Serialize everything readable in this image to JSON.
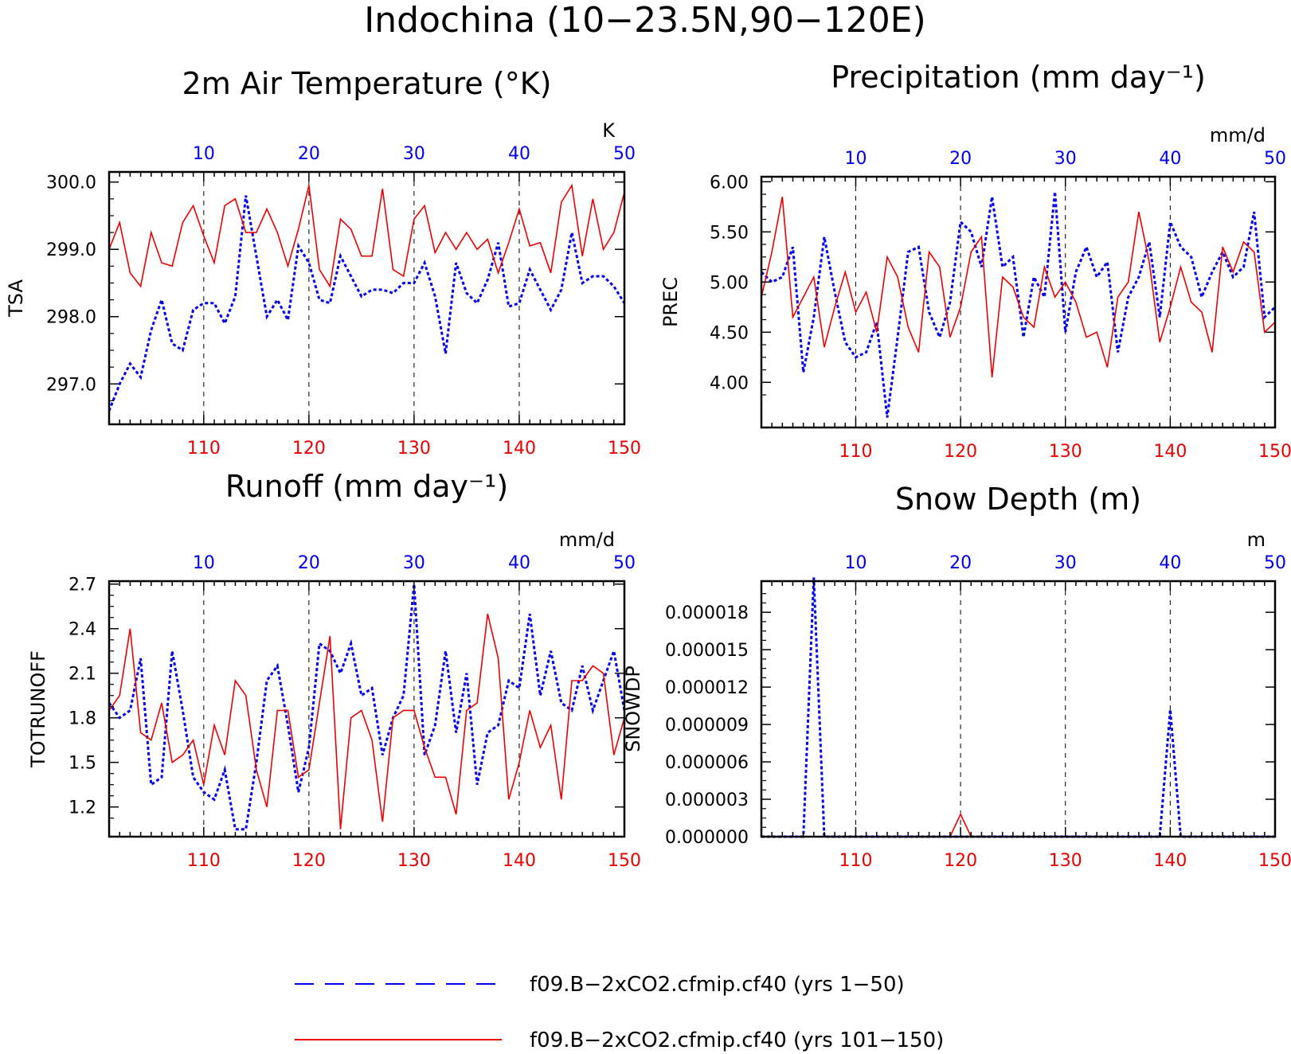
{
  "figure_title": "Indochina (10−23.5N,90−120E)",
  "colors": {
    "run_a": "#0000ee",
    "run_b": "#ee0000",
    "axis": "#000000",
    "grid": "#000000"
  },
  "legend": [
    {
      "label": "f09.B−2xCO2.cfmip.cf40 (yrs 1−50)",
      "style": "dashed",
      "color": "#0000ee"
    },
    {
      "label": "f09.B−2xCO2.cfmip.cf40 (yrs 101−150)",
      "style": "solid",
      "color": "#ee0000"
    }
  ],
  "chart_data": [
    {
      "type": "line",
      "title": "2m Air Temperature (°K)",
      "units": "K",
      "ylabel": "TSA",
      "ylim": [
        296.4,
        300.15
      ],
      "yticks": [
        297.0,
        298.0,
        299.0,
        300.0
      ],
      "ytick_labels": [
        "297.0",
        "298.0",
        "299.0",
        "300.0"
      ],
      "bottom_axis": {
        "range": [
          101,
          150
        ],
        "ticks": [
          110,
          120,
          130,
          140,
          150
        ],
        "labels": [
          "110",
          "120",
          "130",
          "140",
          "150"
        ]
      },
      "top_axis": {
        "range": [
          1,
          50
        ],
        "ticks": [
          10,
          20,
          30,
          40,
          50
        ],
        "labels": [
          "10",
          "20",
          "30",
          "40",
          "50"
        ]
      },
      "grid": "dashed vertical at ticks",
      "series": [
        {
          "x_axis": "top",
          "style": "dashed",
          "color": "#0000ee",
          "x": [
            1,
            2,
            3,
            4,
            5,
            6,
            7,
            8,
            9,
            10,
            11,
            12,
            13,
            14,
            15,
            16,
            17,
            18,
            19,
            20,
            21,
            22,
            23,
            24,
            25,
            26,
            27,
            28,
            29,
            30,
            31,
            32,
            33,
            34,
            35,
            36,
            37,
            38,
            39,
            40,
            41,
            42,
            43,
            44,
            45,
            46,
            47,
            48,
            49,
            50
          ],
          "values": [
            296.6,
            297.0,
            297.3,
            297.1,
            297.8,
            298.25,
            297.6,
            297.5,
            298.1,
            298.2,
            298.2,
            297.9,
            298.3,
            299.8,
            298.9,
            298.0,
            298.25,
            297.95,
            299.05,
            298.8,
            298.25,
            298.2,
            298.9,
            298.6,
            298.3,
            298.4,
            298.4,
            298.35,
            298.5,
            298.5,
            298.8,
            298.3,
            297.45,
            298.8,
            298.35,
            298.2,
            298.55,
            299.1,
            298.15,
            298.2,
            298.7,
            298.4,
            298.1,
            298.4,
            299.25,
            298.5,
            298.6,
            298.6,
            298.45,
            298.2
          ]
        },
        {
          "x_axis": "bottom",
          "style": "solid",
          "color": "#ee0000",
          "x": [
            101,
            102,
            103,
            104,
            105,
            106,
            107,
            108,
            109,
            110,
            111,
            112,
            113,
            114,
            115,
            116,
            117,
            118,
            119,
            120,
            121,
            122,
            123,
            124,
            125,
            126,
            127,
            128,
            129,
            130,
            131,
            132,
            133,
            134,
            135,
            136,
            137,
            138,
            139,
            140,
            141,
            142,
            143,
            144,
            145,
            146,
            147,
            148,
            149,
            150
          ],
          "values": [
            299.0,
            299.4,
            298.65,
            298.45,
            299.25,
            298.8,
            298.75,
            299.4,
            299.65,
            299.2,
            298.8,
            299.65,
            299.75,
            299.25,
            299.25,
            299.6,
            299.25,
            298.75,
            299.3,
            299.95,
            298.7,
            298.45,
            299.45,
            299.3,
            298.9,
            298.9,
            299.9,
            298.7,
            298.6,
            299.45,
            299.65,
            298.95,
            299.25,
            299.0,
            299.25,
            299.0,
            299.15,
            298.65,
            299.1,
            299.6,
            299.05,
            299.1,
            298.65,
            299.7,
            299.95,
            298.9,
            299.75,
            299.0,
            299.25,
            299.85
          ]
        }
      ]
    },
    {
      "type": "line",
      "title": "Precipitation (mm day⁻¹)",
      "units": "mm/d",
      "ylabel": "PREC",
      "ylim": [
        3.55,
        6.05
      ],
      "yticks": [
        4.0,
        4.5,
        5.0,
        5.5,
        6.0
      ],
      "ytick_labels": [
        "4.00",
        "4.50",
        "5.00",
        "5.50",
        "6.00"
      ],
      "bottom_axis": {
        "range": [
          101,
          150
        ],
        "ticks": [
          110,
          120,
          130,
          140,
          150
        ],
        "labels": [
          "110",
          "120",
          "130",
          "140",
          "150"
        ]
      },
      "top_axis": {
        "range": [
          1,
          50
        ],
        "ticks": [
          10,
          20,
          30,
          40,
          50
        ],
        "labels": [
          "10",
          "20",
          "30",
          "40",
          "50"
        ]
      },
      "grid": "dashed vertical at ticks",
      "series": [
        {
          "x_axis": "top",
          "style": "dashed",
          "color": "#0000ee",
          "x": [
            1,
            2,
            3,
            4,
            5,
            6,
            7,
            8,
            9,
            10,
            11,
            12,
            13,
            14,
            15,
            16,
            17,
            18,
            19,
            20,
            21,
            22,
            23,
            24,
            25,
            26,
            27,
            28,
            29,
            30,
            31,
            32,
            33,
            34,
            35,
            36,
            37,
            38,
            39,
            40,
            41,
            42,
            43,
            44,
            45,
            46,
            47,
            48,
            49,
            50
          ],
          "values": [
            5.1,
            5.0,
            5.05,
            5.35,
            4.1,
            4.65,
            5.45,
            4.9,
            4.4,
            4.25,
            4.3,
            4.6,
            3.65,
            4.45,
            5.3,
            5.35,
            4.7,
            4.45,
            4.8,
            5.6,
            5.5,
            5.15,
            5.85,
            5.15,
            5.25,
            4.45,
            5.05,
            4.85,
            5.9,
            4.5,
            5.1,
            5.35,
            5.05,
            5.2,
            4.3,
            4.85,
            5.05,
            5.4,
            4.65,
            5.6,
            5.35,
            5.25,
            4.85,
            5.1,
            5.3,
            5.05,
            5.15,
            5.7,
            4.65,
            4.75
          ]
        },
        {
          "x_axis": "bottom",
          "style": "solid",
          "color": "#ee0000",
          "x": [
            101,
            102,
            103,
            104,
            105,
            106,
            107,
            108,
            109,
            110,
            111,
            112,
            113,
            114,
            115,
            116,
            117,
            118,
            119,
            120,
            121,
            122,
            123,
            124,
            125,
            126,
            127,
            128,
            129,
            130,
            131,
            132,
            133,
            134,
            135,
            136,
            137,
            138,
            139,
            140,
            141,
            142,
            143,
            144,
            145,
            146,
            147,
            148,
            149,
            150
          ],
          "values": [
            4.85,
            5.3,
            5.85,
            4.65,
            4.85,
            5.05,
            4.35,
            4.75,
            5.1,
            4.7,
            4.9,
            4.5,
            5.25,
            5.05,
            4.55,
            4.3,
            5.3,
            5.15,
            4.45,
            4.75,
            5.3,
            5.45,
            4.05,
            5.05,
            4.95,
            4.65,
            4.55,
            5.15,
            4.85,
            5.0,
            4.8,
            4.45,
            4.5,
            4.15,
            4.85,
            5.0,
            5.7,
            5.2,
            4.4,
            4.75,
            5.15,
            4.8,
            4.7,
            4.3,
            5.35,
            5.1,
            5.4,
            5.3,
            4.5,
            4.6
          ]
        }
      ]
    },
    {
      "type": "line",
      "title": "Runoff (mm day⁻¹)",
      "units": "mm/d",
      "ylabel": "TOTRUNOFF",
      "ylim": [
        1.0,
        2.72
      ],
      "yticks": [
        1.2,
        1.5,
        1.8,
        2.1,
        2.4,
        2.7
      ],
      "ytick_labels": [
        "1.2",
        "1.5",
        "1.8",
        "2.1",
        "2.4",
        "2.7"
      ],
      "bottom_axis": {
        "range": [
          101,
          150
        ],
        "ticks": [
          110,
          120,
          130,
          140,
          150
        ],
        "labels": [
          "110",
          "120",
          "130",
          "140",
          "150"
        ]
      },
      "top_axis": {
        "range": [
          1,
          50
        ],
        "ticks": [
          10,
          20,
          30,
          40,
          50
        ],
        "labels": [
          "10",
          "20",
          "30",
          "40",
          "50"
        ]
      },
      "grid": "dashed vertical at ticks",
      "series": [
        {
          "x_axis": "top",
          "style": "dashed",
          "color": "#0000ee",
          "x": [
            1,
            2,
            3,
            4,
            5,
            6,
            7,
            8,
            9,
            10,
            11,
            12,
            13,
            14,
            15,
            16,
            17,
            18,
            19,
            20,
            21,
            22,
            23,
            24,
            25,
            26,
            27,
            28,
            29,
            30,
            31,
            32,
            33,
            34,
            35,
            36,
            37,
            38,
            39,
            40,
            41,
            42,
            43,
            44,
            45,
            46,
            47,
            48,
            49,
            50
          ],
          "values": [
            1.9,
            1.8,
            1.85,
            2.2,
            1.35,
            1.4,
            2.25,
            1.85,
            1.4,
            1.3,
            1.25,
            1.45,
            1.05,
            1.05,
            1.5,
            2.05,
            2.15,
            1.75,
            1.3,
            1.6,
            2.3,
            2.25,
            2.1,
            2.3,
            1.95,
            2.0,
            1.55,
            1.8,
            1.95,
            2.7,
            1.55,
            1.75,
            2.25,
            1.7,
            2.1,
            1.35,
            1.7,
            1.75,
            2.05,
            2.0,
            2.5,
            1.95,
            2.25,
            1.9,
            1.85,
            2.15,
            1.85,
            2.05,
            2.25,
            1.85
          ]
        },
        {
          "x_axis": "bottom",
          "style": "solid",
          "color": "#ee0000",
          "x": [
            101,
            102,
            103,
            104,
            105,
            106,
            107,
            108,
            109,
            110,
            111,
            112,
            113,
            114,
            115,
            116,
            117,
            118,
            119,
            120,
            121,
            122,
            123,
            124,
            125,
            126,
            127,
            128,
            129,
            130,
            131,
            132,
            133,
            134,
            135,
            136,
            137,
            138,
            139,
            140,
            141,
            142,
            143,
            144,
            145,
            146,
            147,
            148,
            149,
            150
          ],
          "values": [
            1.85,
            1.95,
            2.4,
            1.7,
            1.65,
            1.9,
            1.5,
            1.55,
            1.65,
            1.35,
            1.75,
            1.55,
            2.05,
            1.95,
            1.45,
            1.2,
            1.85,
            1.85,
            1.4,
            1.45,
            1.9,
            2.35,
            1.05,
            1.8,
            1.85,
            1.65,
            1.1,
            1.8,
            1.85,
            1.85,
            1.6,
            1.4,
            1.4,
            1.15,
            1.85,
            1.9,
            2.5,
            2.2,
            1.25,
            1.5,
            1.85,
            1.6,
            1.75,
            1.25,
            2.05,
            2.05,
            2.15,
            2.1,
            1.55,
            1.8
          ]
        }
      ]
    },
    {
      "type": "line",
      "title": "Snow Depth (m)",
      "units": "m",
      "ylabel": "SNOWDP",
      "ylim": [
        0.0,
        2.05e-05
      ],
      "yticks": [
        0.0,
        3e-06,
        6e-06,
        9e-06,
        1.2e-05,
        1.5e-05,
        1.8e-05
      ],
      "ytick_labels": [
        "0.000000",
        "0.000003",
        "0.000006",
        "0.000009",
        "0.000012",
        "0.000015",
        "0.000018"
      ],
      "bottom_axis": {
        "range": [
          101,
          150
        ],
        "ticks": [
          110,
          120,
          130,
          140,
          150
        ],
        "labels": [
          "110",
          "120",
          "130",
          "140",
          "150"
        ]
      },
      "top_axis": {
        "range": [
          1,
          50
        ],
        "ticks": [
          10,
          20,
          30,
          40,
          50
        ],
        "labels": [
          "10",
          "20",
          "30",
          "40",
          "50"
        ]
      },
      "grid": "dashed vertical at ticks",
      "series": [
        {
          "x_axis": "top",
          "style": "dashed",
          "color": "#0000ee",
          "x": [
            1,
            2,
            3,
            4,
            5,
            6,
            7,
            8,
            9,
            10,
            11,
            12,
            13,
            14,
            15,
            16,
            17,
            18,
            19,
            20,
            21,
            22,
            23,
            24,
            25,
            26,
            27,
            28,
            29,
            30,
            31,
            32,
            33,
            34,
            35,
            36,
            37,
            38,
            39,
            40,
            41,
            42,
            43,
            44,
            45,
            46,
            47,
            48,
            49,
            50
          ],
          "values": [
            0,
            0,
            0,
            0,
            0,
            2.08e-05,
            0,
            0,
            0,
            0,
            0,
            0,
            0,
            0,
            0,
            0,
            0,
            0,
            0,
            0,
            0,
            0,
            0,
            0,
            0,
            0,
            0,
            0,
            0,
            0,
            0,
            0,
            0,
            0,
            0,
            0,
            0,
            0,
            0,
            1.02e-05,
            0,
            0,
            0,
            0,
            0,
            0,
            0,
            0,
            0,
            0
          ]
        },
        {
          "x_axis": "bottom",
          "style": "solid",
          "color": "#ee0000",
          "x": [
            101,
            102,
            103,
            104,
            105,
            106,
            107,
            108,
            109,
            110,
            111,
            112,
            113,
            114,
            115,
            116,
            117,
            118,
            119,
            120,
            121,
            122,
            123,
            124,
            125,
            126,
            127,
            128,
            129,
            130,
            131,
            132,
            133,
            134,
            135,
            136,
            137,
            138,
            139,
            140,
            141,
            142,
            143,
            144,
            145,
            146,
            147,
            148,
            149,
            150
          ],
          "values": [
            0,
            0,
            0,
            0,
            0,
            0,
            0,
            0,
            0,
            0,
            0,
            0,
            0,
            0,
            0,
            0,
            0,
            0,
            0,
            1.8e-06,
            0,
            0,
            0,
            0,
            0,
            0,
            0,
            0,
            0,
            0,
            0,
            0,
            0,
            0,
            0,
            0,
            0,
            0,
            0,
            0,
            0,
            0,
            0,
            0,
            0,
            0,
            0,
            0,
            0,
            0
          ]
        }
      ]
    }
  ]
}
